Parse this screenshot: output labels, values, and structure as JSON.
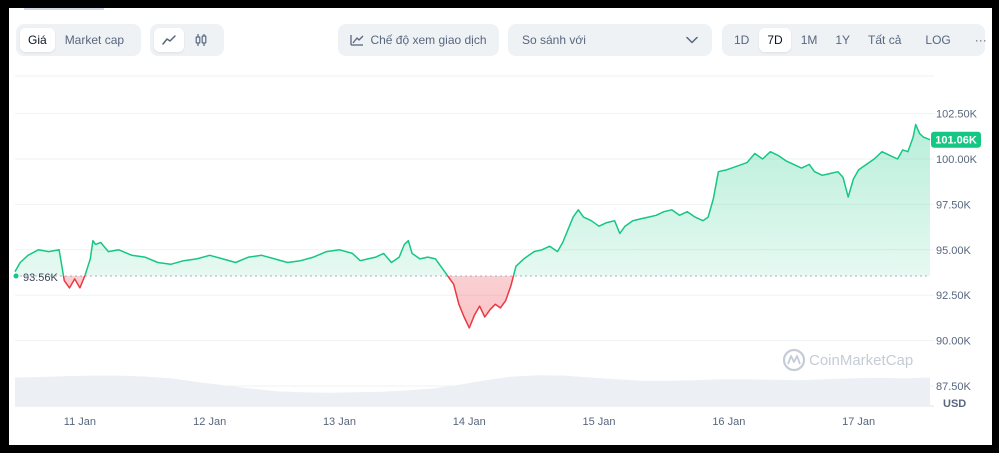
{
  "toolbar": {
    "metric_tabs": [
      "Giá",
      "Market cap"
    ],
    "active_metric": "Giá",
    "chart_style_icons": [
      "line-chart-icon",
      "candlestick-icon"
    ],
    "trading_view_label": "Chế độ xem giao dịch",
    "compare_placeholder": "So sánh với",
    "ranges": [
      "1D",
      "7D",
      "1M",
      "1Y",
      "Tất cả"
    ],
    "active_range": "7D",
    "log_label": "LOG",
    "more_label": "···"
  },
  "watermark": "CoinMarketCap",
  "colors": {
    "up": "#16c784",
    "down": "#ea3943",
    "axis_text": "#58667e",
    "grid": "#eff2f5"
  },
  "chart_data": {
    "type": "area",
    "currency_label": "USD",
    "baseline": 93.56,
    "baseline_label": "93.56K",
    "current_price": 101.06,
    "current_label": "101.06K",
    "ylim": [
      86.4,
      104.9
    ],
    "xlim": [
      0,
      7.05
    ],
    "y_ticks": [
      87.5,
      90.0,
      92.5,
      95.0,
      97.5,
      100.0,
      102.5
    ],
    "y_tick_labels": [
      "87.50K",
      "90.00K",
      "92.50K",
      "95.00K",
      "97.50K",
      "100.00K",
      "102.50K"
    ],
    "x_ticks": [
      0.5,
      1.5,
      2.5,
      3.5,
      4.5,
      5.5,
      6.5
    ],
    "x_tick_labels": [
      "11 Jan",
      "12 Jan",
      "13 Jan",
      "14 Jan",
      "15 Jan",
      "16 Jan",
      "17 Jan"
    ],
    "series": [
      {
        "values": [
          [
            0.0,
            93.8
          ],
          [
            0.04,
            94.3
          ],
          [
            0.1,
            94.7
          ],
          [
            0.18,
            95.0
          ],
          [
            0.26,
            94.9
          ],
          [
            0.34,
            95.0
          ],
          [
            0.38,
            93.3
          ],
          [
            0.42,
            92.9
          ],
          [
            0.46,
            93.4
          ],
          [
            0.5,
            92.9
          ],
          [
            0.54,
            93.6
          ],
          [
            0.58,
            94.5
          ],
          [
            0.6,
            95.5
          ],
          [
            0.62,
            95.3
          ],
          [
            0.66,
            95.4
          ],
          [
            0.72,
            94.9
          ],
          [
            0.8,
            95.0
          ],
          [
            0.9,
            94.7
          ],
          [
            1.0,
            94.6
          ],
          [
            1.1,
            94.3
          ],
          [
            1.2,
            94.2
          ],
          [
            1.3,
            94.4
          ],
          [
            1.4,
            94.5
          ],
          [
            1.5,
            94.7
          ],
          [
            1.6,
            94.5
          ],
          [
            1.7,
            94.3
          ],
          [
            1.8,
            94.6
          ],
          [
            1.9,
            94.7
          ],
          [
            2.0,
            94.5
          ],
          [
            2.1,
            94.3
          ],
          [
            2.2,
            94.4
          ],
          [
            2.3,
            94.6
          ],
          [
            2.4,
            94.9
          ],
          [
            2.5,
            95.0
          ],
          [
            2.6,
            94.8
          ],
          [
            2.66,
            94.4
          ],
          [
            2.72,
            94.5
          ],
          [
            2.78,
            94.6
          ],
          [
            2.84,
            94.8
          ],
          [
            2.9,
            94.3
          ],
          [
            2.96,
            94.6
          ],
          [
            3.0,
            95.3
          ],
          [
            3.03,
            95.5
          ],
          [
            3.06,
            94.8
          ],
          [
            3.12,
            94.5
          ],
          [
            3.18,
            94.6
          ],
          [
            3.24,
            94.5
          ],
          [
            3.3,
            93.9
          ],
          [
            3.34,
            93.5
          ],
          [
            3.38,
            93.1
          ],
          [
            3.42,
            92.0
          ],
          [
            3.46,
            91.3
          ],
          [
            3.5,
            90.7
          ],
          [
            3.54,
            91.4
          ],
          [
            3.58,
            91.9
          ],
          [
            3.62,
            91.3
          ],
          [
            3.66,
            91.7
          ],
          [
            3.7,
            92.0
          ],
          [
            3.74,
            91.8
          ],
          [
            3.78,
            92.2
          ],
          [
            3.82,
            93.0
          ],
          [
            3.86,
            94.1
          ],
          [
            3.92,
            94.5
          ],
          [
            4.0,
            94.9
          ],
          [
            4.06,
            95.0
          ],
          [
            4.12,
            95.2
          ],
          [
            4.18,
            94.9
          ],
          [
            4.22,
            95.4
          ],
          [
            4.26,
            96.1
          ],
          [
            4.3,
            96.8
          ],
          [
            4.34,
            97.2
          ],
          [
            4.38,
            96.8
          ],
          [
            4.44,
            96.6
          ],
          [
            4.5,
            96.3
          ],
          [
            4.56,
            96.5
          ],
          [
            4.62,
            96.6
          ],
          [
            4.66,
            95.9
          ],
          [
            4.7,
            96.3
          ],
          [
            4.76,
            96.6
          ],
          [
            4.82,
            96.7
          ],
          [
            4.88,
            96.8
          ],
          [
            4.94,
            96.9
          ],
          [
            5.0,
            97.1
          ],
          [
            5.06,
            97.2
          ],
          [
            5.12,
            96.9
          ],
          [
            5.18,
            97.1
          ],
          [
            5.24,
            96.8
          ],
          [
            5.3,
            96.6
          ],
          [
            5.34,
            96.8
          ],
          [
            5.38,
            97.8
          ],
          [
            5.42,
            99.3
          ],
          [
            5.48,
            99.4
          ],
          [
            5.56,
            99.6
          ],
          [
            5.64,
            99.8
          ],
          [
            5.7,
            100.3
          ],
          [
            5.76,
            100.0
          ],
          [
            5.82,
            100.4
          ],
          [
            5.88,
            100.2
          ],
          [
            5.94,
            99.9
          ],
          [
            6.0,
            99.7
          ],
          [
            6.06,
            99.5
          ],
          [
            6.12,
            99.7
          ],
          [
            6.16,
            99.3
          ],
          [
            6.22,
            99.1
          ],
          [
            6.28,
            99.2
          ],
          [
            6.34,
            99.3
          ],
          [
            6.38,
            99.0
          ],
          [
            6.42,
            97.9
          ],
          [
            6.46,
            98.9
          ],
          [
            6.5,
            99.4
          ],
          [
            6.56,
            99.7
          ],
          [
            6.62,
            100.0
          ],
          [
            6.68,
            100.4
          ],
          [
            6.74,
            100.2
          ],
          [
            6.8,
            100.0
          ],
          [
            6.84,
            100.5
          ],
          [
            6.88,
            100.4
          ],
          [
            6.92,
            101.2
          ],
          [
            6.94,
            101.9
          ],
          [
            6.97,
            101.4
          ],
          [
            7.0,
            101.2
          ],
          [
            7.05,
            101.06
          ]
        ]
      }
    ],
    "volume": [
      0.62,
      0.63,
      0.65,
      0.66,
      0.66,
      0.64,
      0.6,
      0.52,
      0.45,
      0.38,
      0.32,
      0.3,
      0.29,
      0.3,
      0.31,
      0.34,
      0.38,
      0.46,
      0.56,
      0.64,
      0.67,
      0.66,
      0.62,
      0.58,
      0.55,
      0.55,
      0.56,
      0.58,
      0.58,
      0.57,
      0.56,
      0.58,
      0.6,
      0.61,
      0.6,
      0.62
    ],
    "grid": true
  }
}
